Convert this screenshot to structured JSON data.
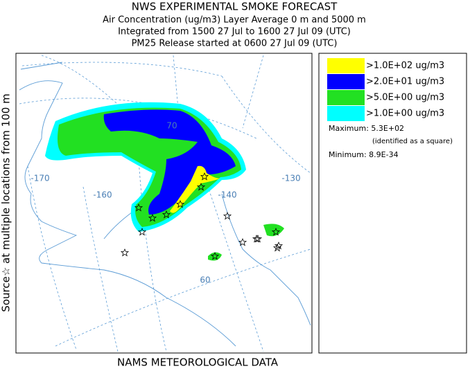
{
  "header": {
    "lines": [
      "NWS EXPERIMENTAL SMOKE FORECAST",
      "Air Concentration (ug/m3) Layer Average    0 m and  5000 m",
      "Integrated from 1500 27 Jul to 1600 27 Jul 09 (UTC)",
      "PM25 Release started at 0600 27 Jul 09 (UTC)"
    ]
  },
  "side_label": "Source☆ at multiple locations   from   100 m",
  "footer": "NAMS METEOROLOGICAL DATA",
  "legend": {
    "items": [
      {
        "label": ">1.0E+02 ug/m3",
        "color": "#ffff00"
      },
      {
        "label": ">2.0E+01 ug/m3",
        "color": "#0000ff"
      },
      {
        "label": ">5.0E+00 ug/m3",
        "color": "#22e022"
      },
      {
        "label": ">1.0E+00 ug/m3",
        "color": "#00ffff"
      }
    ],
    "maximum": "Maximum: 5.3E+02",
    "maximum_note": "(identified as a square)",
    "minimum": "Minimum: 8.9E-34"
  },
  "map": {
    "labels": [
      "-170",
      "-160",
      "70",
      "-140",
      "-130",
      "60"
    ]
  }
}
